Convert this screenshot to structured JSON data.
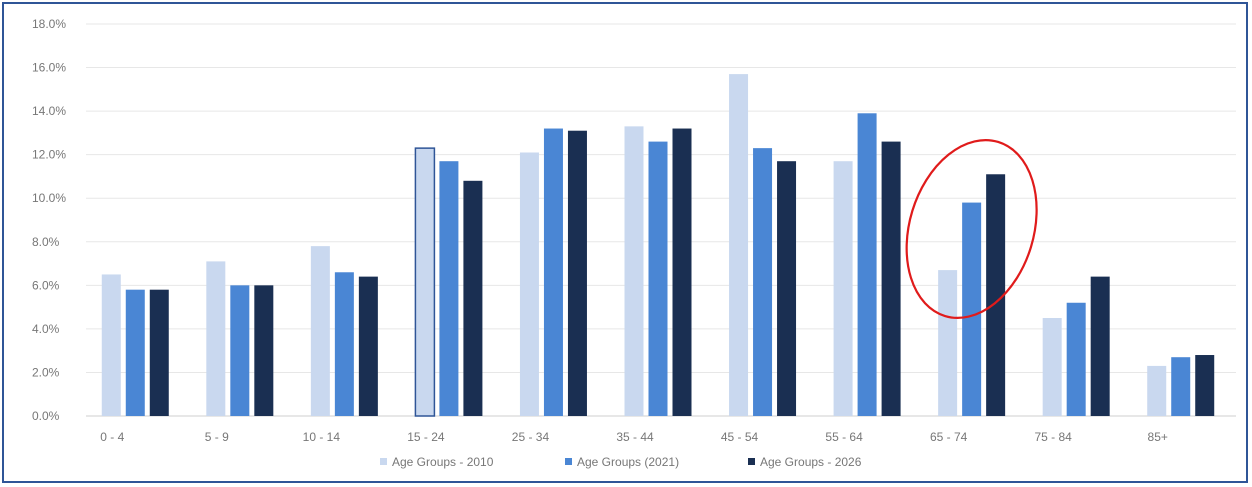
{
  "chart_data": {
    "type": "bar",
    "title": "",
    "xlabel": "",
    "ylabel": "",
    "categories": [
      "0 - 4",
      "5 - 9",
      "10 - 14",
      "15 - 24",
      "25 - 34",
      "35 - 44",
      "45 - 54",
      "55 - 64",
      "65 - 74",
      "75 - 84",
      "85+"
    ],
    "series": [
      {
        "name": "Age Groups - 2010",
        "color": "#c9d8ef",
        "values": [
          6.5,
          7.1,
          7.8,
          12.3,
          12.1,
          13.3,
          15.7,
          11.7,
          6.7,
          4.5,
          2.3
        ]
      },
      {
        "name": "Age Groups (2021)",
        "color": "#4a86d4",
        "values": [
          5.8,
          6.0,
          6.6,
          11.7,
          13.2,
          12.6,
          12.3,
          13.9,
          9.8,
          5.2,
          2.7
        ]
      },
      {
        "name": "Age Groups - 2026",
        "color": "#1a2f52",
        "values": [
          5.8,
          6.0,
          6.4,
          10.8,
          13.1,
          13.2,
          11.7,
          12.6,
          11.1,
          6.4,
          2.8
        ]
      }
    ],
    "ylim": [
      0,
      18
    ],
    "y_ticks": [
      "0.0%",
      "2.0%",
      "4.0%",
      "6.0%",
      "8.0%",
      "10.0%",
      "12.0%",
      "14.0%",
      "16.0%",
      "18.0%"
    ],
    "grid": true,
    "legend_position": "bottom",
    "annotation": {
      "type": "circle",
      "color": "#e01b1b",
      "category": "65 - 74"
    },
    "highlighted_bar": {
      "category": "15 - 24",
      "series": "Age Groups - 2010",
      "outline_color": "#2f5597"
    }
  }
}
